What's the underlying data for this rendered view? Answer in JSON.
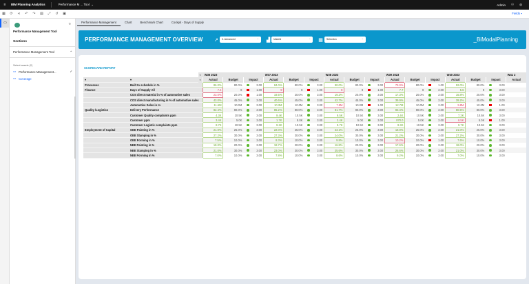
{
  "topbar": {
    "app": "IBM Planning Analytics",
    "doc": "Performance M ... Tool",
    "user": "Admin"
  },
  "toolbar": {
    "fields": "Fields"
  },
  "left": {
    "title": "Performance Management Tool",
    "sections": "Sections",
    "group": "Performance Management Tool",
    "select_assets": "Select assets (2)",
    "items": [
      "Performance Management...",
      "Coverage"
    ]
  },
  "tabs": [
    "Performance Management",
    "Chart",
    "Benchmark Chart",
    "Cockpit - Days of Supply"
  ],
  "banner": {
    "title": "PERFORMANCE MANAGEMENT OVERVIEW",
    "dropdowns": [
      "3. Advanced",
      "Madrid",
      "Selection"
    ],
    "brand": "_BiModalPlanning"
  },
  "colors": {
    "banner": "#0b97cc",
    "good": "#5cb82e",
    "bad": "#e00000"
  },
  "report": {
    "title": "SCORECARD REPORT",
    "weeks": [
      "W36 2023",
      "W37 2023",
      "W38 2023",
      "W39 2023",
      "W40 2023",
      "W41 2"
    ],
    "subheaders": [
      "Actual",
      "Budget",
      "Impact"
    ],
    "rows": [
      {
        "group": "Processes",
        "kpi": "Built to schedule in %",
        "budget": "80.0%"
      },
      {
        "group": "Finance",
        "kpi": "Days of Supply All",
        "budget": "8"
      },
      {
        "group": "",
        "kpi": "COS direct material in % of automotive sales",
        "budget": "20.0%"
      },
      {
        "group": "",
        "kpi": "COS direct manufacturing in % of automotive sales",
        "budget": "45.0%"
      },
      {
        "group": "",
        "kpi": "Automotive Sales in m",
        "budget": "10.0M"
      },
      {
        "group": "Quality /Logistics",
        "kpi": "Delivery Performance",
        "budget": "80.0%"
      },
      {
        "group": "",
        "kpi": "Customer Quality complaints ppm",
        "budget": "10.5K"
      },
      {
        "group": "",
        "kpi": "Customer ppm",
        "budget": "5.0K"
      },
      {
        "group": "",
        "kpi": "Customer Logistic complaints ppm",
        "budget": "10.5K"
      },
      {
        "group": "Employment of Capital",
        "kpi": "OEE Painting in %",
        "budget": "25.0%"
      },
      {
        "group": "",
        "kpi": "OEE Stamping in %",
        "budget": "30.0%"
      },
      {
        "group": "",
        "kpi": "OEE Forming in %",
        "budget": "10.0%"
      },
      {
        "group": "",
        "kpi": "NEE Painting in %",
        "budget": "20.0%"
      },
      {
        "group": "",
        "kpi": "NEE Stamping in %",
        "budget": "30.0%"
      },
      {
        "group": "",
        "kpi": "NEE Forming in %",
        "budget": "10.0%"
      }
    ],
    "actuals": [
      [
        "86.0%",
        "7.4",
        "23.0%",
        "43.0%",
        "11.6M",
        "82.4%",
        "4.3K",
        "3.4K",
        "8.7K",
        "21.0%",
        "27.2%",
        "7.5%",
        "18.0%",
        "21.0%",
        "7.0%"
      ],
      [
        "84.0%",
        "9",
        "19.5%",
        "40.6%",
        "10.3M",
        "85.2%",
        "9.4K",
        "1.7K",
        "9.2K",
        "22.0%",
        "27.3%",
        "8.3%",
        "18.7%",
        "23.0%",
        "7.8%"
      ],
      [
        "90.0%",
        "8",
        "19.2%",
        "42.7%",
        "7.9M",
        "81.7%",
        "9.5K",
        "2.4K",
        "9.7K",
        "23.1%",
        "24.0%",
        "9.8%",
        "16.8%",
        "25.6%",
        "8.6%"
      ],
      [
        "73.0%",
        "7.7",
        "17.3%",
        "39.9%",
        "12.7M",
        "83.4%",
        "2.4K",
        "870.0",
        "9.3K",
        "18.0%",
        "21.2%",
        "10.2%",
        "17.6%",
        "26.6%",
        "9.2%"
      ],
      [
        "92.0%",
        "5.6",
        "16.8%",
        "39.2%",
        "9.8M",
        "80.5%",
        "7.2K",
        "6.5K",
        "9.7K",
        "21.0%",
        "27.2%",
        "7.6%",
        "18.0%",
        "21.0%",
        "7.0%"
      ]
    ],
    "bad": [
      [
        1,
        2
      ],
      [
        1
      ],
      [
        1,
        4
      ],
      [
        0,
        11
      ],
      [
        4,
        7
      ]
    ]
  }
}
